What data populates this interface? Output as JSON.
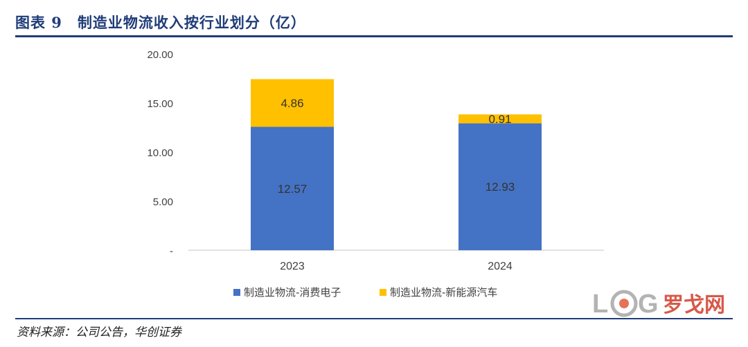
{
  "header": {
    "figure_label": "图表 9",
    "title": "制造业物流收入按行业划分（亿）"
  },
  "source": "资料来源：公司公告，华创证券",
  "watermark": {
    "text": "罗戈网",
    "logo_text": "LOG"
  },
  "colors": {
    "series1": "#4472c4",
    "series2": "#ffc000",
    "title": "#1f3c78"
  },
  "chart_data": {
    "type": "bar",
    "stacked": true,
    "categories": [
      "2023",
      "2024"
    ],
    "series": [
      {
        "name": "制造业物流-消费电子",
        "values": [
          12.57,
          12.93
        ],
        "labels": [
          "12.57",
          "12.93"
        ]
      },
      {
        "name": "制造业物流-新能源汽车",
        "values": [
          4.86,
          0.91
        ],
        "labels": [
          "4.86",
          "0.91"
        ]
      }
    ],
    "yticks": [
      "-",
      "5.00",
      "10.00",
      "15.00",
      "20.00"
    ],
    "ylim": [
      0,
      20
    ],
    "grid": false,
    "legend": "bottom"
  }
}
